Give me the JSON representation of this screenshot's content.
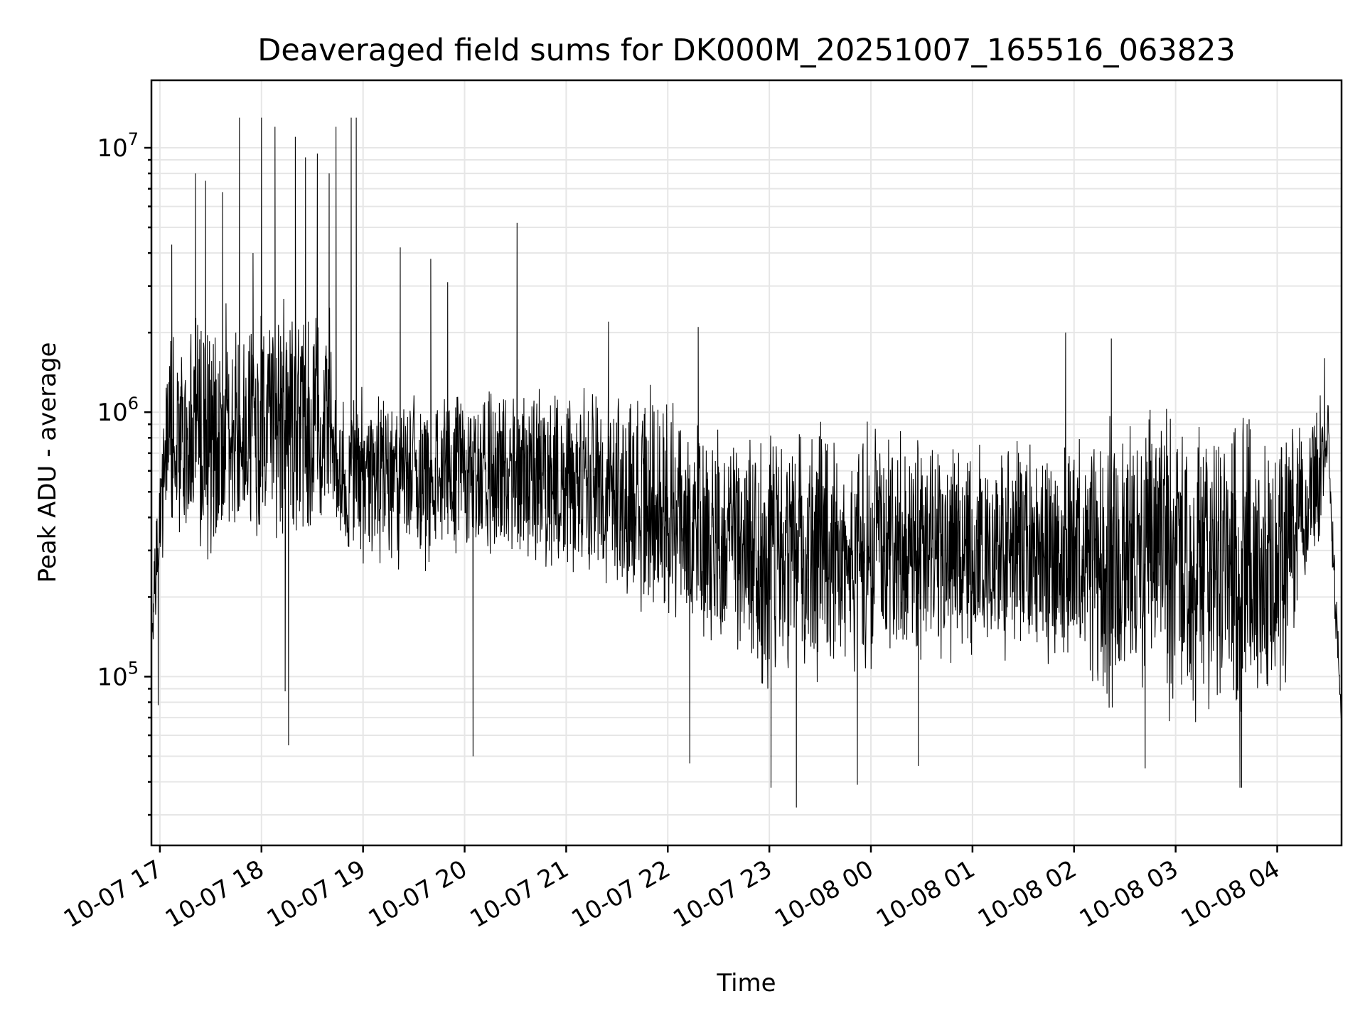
{
  "chart_data": {
    "type": "line",
    "title": "Deaveraged field sums for DK000M_20251007_165516_063823",
    "xlabel": "Time",
    "ylabel": "Peak ADU - average",
    "y_scale": "log",
    "ylim": [
      23000,
      18000000
    ],
    "xlim": [
      "2025-10-07 16:55",
      "2025-10-08 04:38"
    ],
    "grid": true,
    "legend": "none",
    "line_color": "#000000",
    "x_ticks": [
      {
        "t": "2025-10-07 17:00",
        "label": "10-07 17"
      },
      {
        "t": "2025-10-07 18:00",
        "label": "10-07 18"
      },
      {
        "t": "2025-10-07 19:00",
        "label": "10-07 19"
      },
      {
        "t": "2025-10-07 20:00",
        "label": "10-07 20"
      },
      {
        "t": "2025-10-07 21:00",
        "label": "10-07 21"
      },
      {
        "t": "2025-10-07 22:00",
        "label": "10-07 22"
      },
      {
        "t": "2025-10-07 23:00",
        "label": "10-07 23"
      },
      {
        "t": "2025-10-08 00:00",
        "label": "10-08 00"
      },
      {
        "t": "2025-10-08 01:00",
        "label": "10-08 01"
      },
      {
        "t": "2025-10-08 02:00",
        "label": "10-08 02"
      },
      {
        "t": "2025-10-08 03:00",
        "label": "10-08 03"
      },
      {
        "t": "2025-10-08 04:00",
        "label": "10-08 04"
      }
    ],
    "y_ticks": [
      {
        "value": 100000,
        "base": "10",
        "exp": "5"
      },
      {
        "value": 1000000,
        "base": "10",
        "exp": "6"
      },
      {
        "value": 10000000,
        "base": "10",
        "exp": "7"
      }
    ],
    "envelope": [
      {
        "t": "2025-10-07 16:55",
        "low": 110000,
        "high": 250000
      },
      {
        "t": "2025-10-07 17:05",
        "low": 350000,
        "high": 2200000
      },
      {
        "t": "2025-10-07 17:30",
        "low": 250000,
        "high": 2600000
      },
      {
        "t": "2025-10-07 18:00",
        "low": 280000,
        "high": 2700000
      },
      {
        "t": "2025-10-07 18:40",
        "low": 350000,
        "high": 2800000
      },
      {
        "t": "2025-10-07 18:45",
        "low": 300000,
        "high": 1200000
      },
      {
        "t": "2025-10-07 19:00",
        "low": 250000,
        "high": 1300000
      },
      {
        "t": "2025-10-07 20:00",
        "low": 250000,
        "high": 1300000
      },
      {
        "t": "2025-10-07 21:00",
        "low": 220000,
        "high": 1400000
      },
      {
        "t": "2025-10-07 22:00",
        "low": 150000,
        "high": 1300000
      },
      {
        "t": "2025-10-07 22:30",
        "low": 110000,
        "high": 900000
      },
      {
        "t": "2025-10-07 23:00",
        "low": 80000,
        "high": 900000
      },
      {
        "t": "2025-10-08 00:00",
        "low": 90000,
        "high": 1000000
      },
      {
        "t": "2025-10-08 01:00",
        "low": 110000,
        "high": 800000
      },
      {
        "t": "2025-10-08 01:40",
        "low": 110000,
        "high": 800000
      },
      {
        "t": "2025-10-08 02:00",
        "low": 75000,
        "high": 1100000
      },
      {
        "t": "2025-10-08 03:00",
        "low": 65000,
        "high": 1100000
      },
      {
        "t": "2025-10-08 04:00",
        "low": 65000,
        "high": 1000000
      },
      {
        "t": "2025-10-08 04:25",
        "low": 300000,
        "high": 1200000
      },
      {
        "t": "2025-10-08 04:30",
        "low": 600000,
        "high": 1300000
      },
      {
        "t": "2025-10-08 04:34",
        "low": 150000,
        "high": 300000
      },
      {
        "t": "2025-10-08 04:38",
        "low": 62000,
        "high": 80000
      }
    ],
    "peaks": [
      {
        "t": "2025-10-07 17:07",
        "value": 4300000
      },
      {
        "t": "2025-10-07 17:21",
        "value": 8000000
      },
      {
        "t": "2025-10-07 17:27",
        "value": 7500000
      },
      {
        "t": "2025-10-07 17:37",
        "value": 6800000
      },
      {
        "t": "2025-10-07 17:47",
        "value": 13000000
      },
      {
        "t": "2025-10-07 17:55",
        "value": 4000000
      },
      {
        "t": "2025-10-07 18:00",
        "value": 13000000
      },
      {
        "t": "2025-10-07 18:08",
        "value": 12000000
      },
      {
        "t": "2025-10-07 18:20",
        "value": 11000000
      },
      {
        "t": "2025-10-07 18:26",
        "value": 9200000
      },
      {
        "t": "2025-10-07 18:33",
        "value": 9500000
      },
      {
        "t": "2025-10-07 18:40",
        "value": 8000000
      },
      {
        "t": "2025-10-07 18:44",
        "value": 12000000
      },
      {
        "t": "2025-10-07 18:53",
        "value": 13000000
      },
      {
        "t": "2025-10-07 18:56",
        "value": 13000000
      },
      {
        "t": "2025-10-07 19:22",
        "value": 4200000
      },
      {
        "t": "2025-10-07 19:40",
        "value": 3800000
      },
      {
        "t": "2025-10-07 19:50",
        "value": 3100000
      },
      {
        "t": "2025-10-07 20:31",
        "value": 5200000
      },
      {
        "t": "2025-10-07 21:25",
        "value": 2200000
      },
      {
        "t": "2025-10-07 22:18",
        "value": 2100000
      },
      {
        "t": "2025-10-08 01:55",
        "value": 2000000
      },
      {
        "t": "2025-10-08 02:22",
        "value": 1900000
      },
      {
        "t": "2025-10-08 04:28",
        "value": 1600000
      }
    ],
    "dips": [
      {
        "t": "2025-10-07 16:59",
        "value": 78000
      },
      {
        "t": "2025-10-07 18:14",
        "value": 88000
      },
      {
        "t": "2025-10-07 18:16",
        "value": 55000
      },
      {
        "t": "2025-10-07 20:05",
        "value": 50000
      },
      {
        "t": "2025-10-07 22:13",
        "value": 47000
      },
      {
        "t": "2025-10-07 23:01",
        "value": 38000
      },
      {
        "t": "2025-10-07 23:16",
        "value": 32000
      },
      {
        "t": "2025-10-07 23:52",
        "value": 39000
      },
      {
        "t": "2025-10-08 00:28",
        "value": 46000
      },
      {
        "t": "2025-10-08 02:42",
        "value": 45000
      },
      {
        "t": "2025-10-08 03:38",
        "value": 38000
      },
      {
        "t": "2025-10-08 03:39",
        "value": 38000
      }
    ]
  }
}
